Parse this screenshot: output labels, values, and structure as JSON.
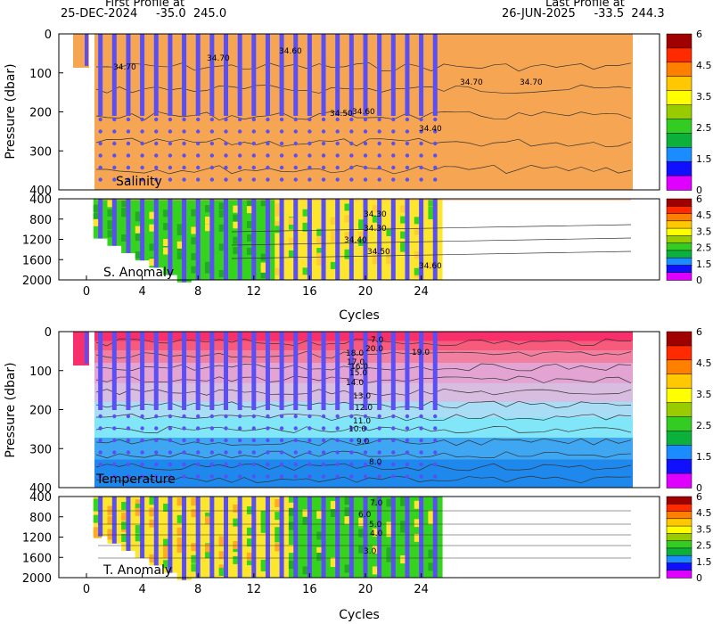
{
  "header": {
    "first_title": "First Profile at",
    "first_line": "25-DEC-2024     -35.0  245.0",
    "last_title": "Last Profile at",
    "last_line": "26-JUN-2025     -33.5  244.3"
  },
  "colors": {
    "scale": [
      "#e000ff",
      "#1010ff",
      "#1a8cff",
      "#0bb13a",
      "#33cc22",
      "#99cc00",
      "#ffff00",
      "#ffc800",
      "#ff7f00",
      "#ff2a00",
      "#a00000"
    ],
    "salinity_fill": "#f6a553",
    "anomaly_green": "#35d31e",
    "anomaly_yellow": "#fde62e",
    "dot": "#5a4ff5",
    "temp_bands": [
      "#f72f6a",
      "#f85a7c",
      "#f07fa0",
      "#e3a4d4",
      "#d8bde0",
      "#a9dcf5",
      "#80e6f8",
      "#3fa6f2",
      "#1e88ec"
    ]
  },
  "chart_data": [
    {
      "type": "heatmap",
      "panel": "Salinity",
      "label": "Salinity",
      "ylabel": "Pressure (dbar)",
      "xlabel": "",
      "y_ticks": [
        "0",
        "100",
        "200",
        "300",
        "400"
      ],
      "ylim": [
        0,
        400
      ],
      "xlim": [
        -1.5,
        26.5
      ],
      "contours": [
        "34.70",
        "34.70",
        "34.60",
        "34.70",
        "34.60",
        "34.70",
        "34.50",
        "34.40"
      ],
      "colorbar": [
        "6",
        "4.5",
        "3.5",
        "2.5",
        "1.5",
        "0"
      ]
    },
    {
      "type": "heatmap",
      "panel": "S. Anomaly",
      "label": "S. Anomaly",
      "y_ticks": [
        "400",
        "800",
        "1200",
        "1600",
        "2000"
      ],
      "ylim": [
        400,
        2000
      ],
      "contours": [
        "34.30",
        "34.30",
        "34.40",
        "34.50",
        "34.60"
      ],
      "colorbar": [
        "6",
        "4.5",
        "3.5",
        "2.5",
        "1.5",
        "0"
      ]
    },
    {
      "type": "heatmap",
      "panel": "Temperature",
      "label": "Temperature",
      "ylabel": "Pressure (dbar)",
      "xlabel": "Cycles",
      "x_ticks": [
        "0",
        "4",
        "8",
        "12",
        "16",
        "20",
        "24"
      ],
      "y_ticks": [
        "0",
        "100",
        "200",
        "300",
        "400"
      ],
      "ylim": [
        0,
        400
      ],
      "contours": [
        "7.0",
        "20.0",
        "19.0",
        "18.0",
        "17.0",
        "16.0",
        "15.0",
        "14.0",
        "13.0",
        "12.0",
        "11.0",
        "10.0",
        "9.0",
        "8.0"
      ],
      "colorbar": [
        "6",
        "4.5",
        "3.5",
        "2.5",
        "1.5",
        "0"
      ]
    },
    {
      "type": "heatmap",
      "panel": "T. Anomaly",
      "label": "T. Anomaly",
      "xlabel": "Cycles",
      "x_ticks": [
        "0",
        "4",
        "8",
        "12",
        "16",
        "20",
        "24"
      ],
      "y_ticks": [
        "400",
        "800",
        "1200",
        "1600",
        "2000"
      ],
      "ylim": [
        400,
        2000
      ],
      "contours": [
        "7.0",
        "6.0",
        "5.0",
        "4.0",
        "3.0"
      ],
      "colorbar": [
        "6",
        "4.5",
        "3.5",
        "2.5",
        "1.5",
        "0"
      ]
    }
  ]
}
